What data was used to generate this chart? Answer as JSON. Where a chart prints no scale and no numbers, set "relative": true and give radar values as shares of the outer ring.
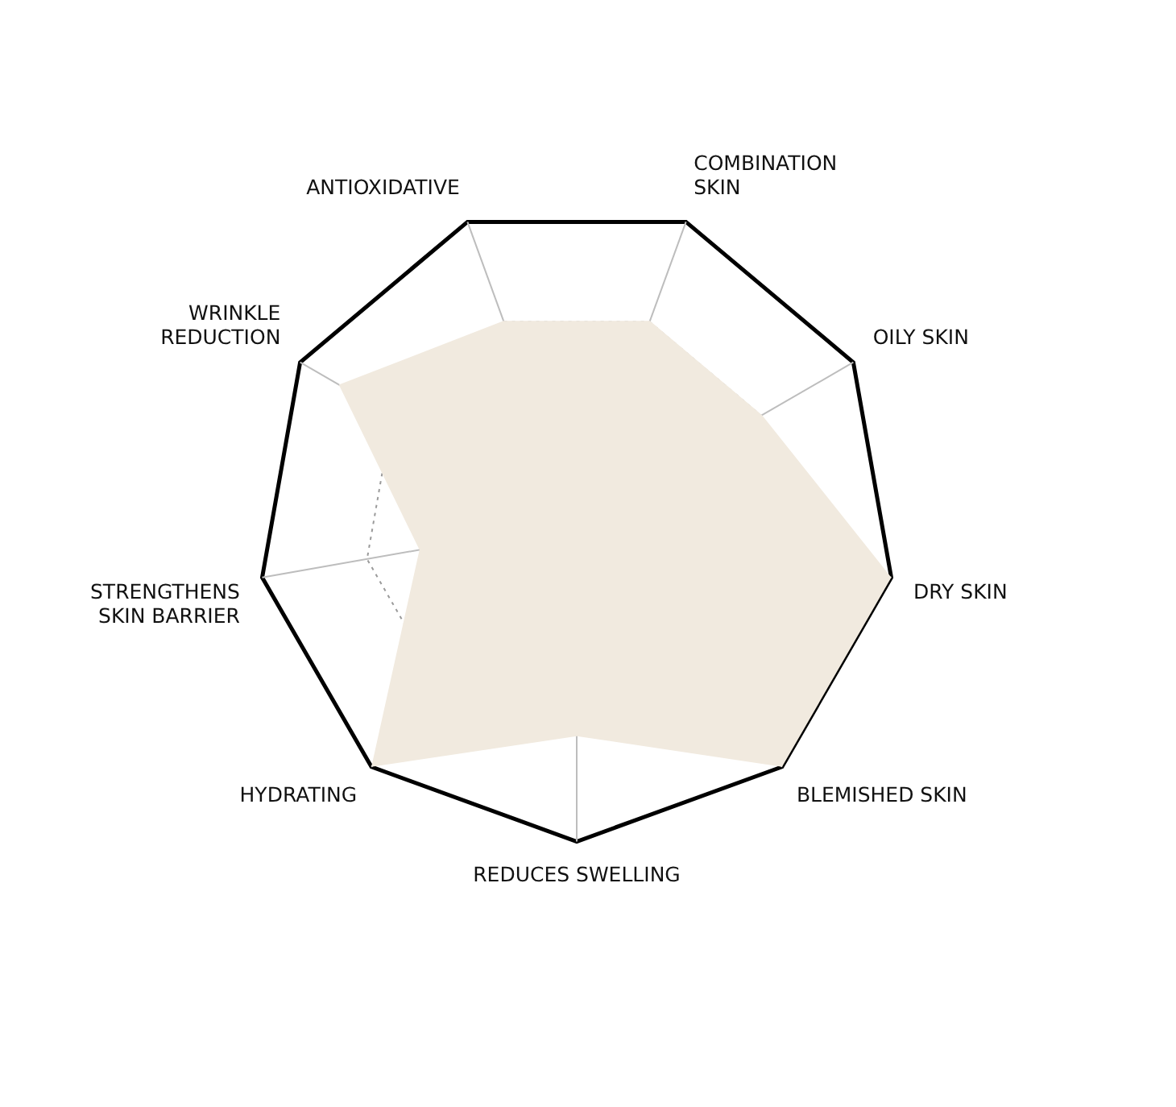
{
  "chart_data": {
    "type": "radar",
    "relative": true,
    "categories": [
      "ANTIOXIDATIVE",
      "COMBINATION\nSKIN",
      "OILY SKIN",
      "DRY SKIN",
      "BLEMISHED SKIN",
      "REDUCES SWELLING",
      "HYDRATING",
      "STRENGTHENS\nSKIN BARRIER",
      "WRINKLE\nREDUCTION"
    ],
    "series": [
      {
        "color": "#f1eadf",
        "values": [
          0.67,
          0.67,
          0.67,
          1,
          1,
          0.67,
          1,
          0.5,
          0.86
        ]
      }
    ],
    "legend": false
  }
}
